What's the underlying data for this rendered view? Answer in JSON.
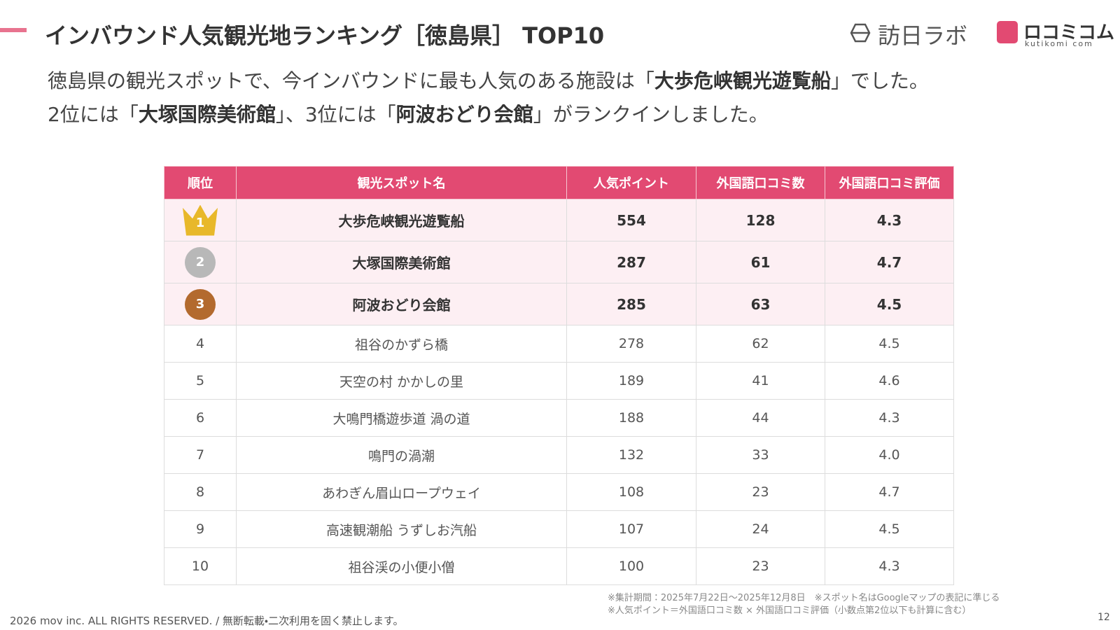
{
  "header": {
    "title": "インバウンド人気観光地ランキング［徳島県］ TOP10",
    "logo_1": "訪日ラボ",
    "logo_2": "ロコミコム",
    "logo_2_sub": "kutikomi com"
  },
  "intro": {
    "lines": [
      [
        {
          "text": "徳島県の観光スポットで、今インバウンドに最も人気のある施設は「",
          "bold": false
        },
        {
          "text": "大歩危峡観光遊覧船",
          "bold": true
        },
        {
          "text": "」でした。",
          "bold": false
        }
      ],
      [
        {
          "text": "2位には「",
          "bold": false
        },
        {
          "text": "大塚国際美術館",
          "bold": true
        },
        {
          "text": "」、3位には「",
          "bold": false
        },
        {
          "text": "阿波おどり会館",
          "bold": true
        },
        {
          "text": "」がランクインしました。",
          "bold": false
        }
      ]
    ]
  },
  "table": {
    "columns": [
      "順位",
      "観光スポット名",
      "人気ポイント",
      "外国語口コミ数",
      "外国語口コミ評価"
    ],
    "rows": [
      [
        "1",
        "大歩危峡観光遊覧船",
        "554",
        "128",
        "4.3"
      ],
      [
        "2",
        "大塚国際美術館",
        "287",
        "61",
        "4.7"
      ],
      [
        "3",
        "阿波おどり会館",
        "285",
        "63",
        "4.5"
      ],
      [
        "4",
        "祖谷のかずら橋",
        "278",
        "62",
        "4.5"
      ],
      [
        "5",
        "天空の村 かかしの里",
        "189",
        "41",
        "4.6"
      ],
      [
        "6",
        "大鳴門橋遊歩道 渦の道",
        "188",
        "44",
        "4.3"
      ],
      [
        "7",
        "鳴門の渦潮",
        "132",
        "33",
        "4.0"
      ],
      [
        "8",
        "あわぎん眉山ロープウェイ",
        "108",
        "23",
        "4.7"
      ],
      [
        "9",
        "高速観潮船 うずしお汽船",
        "107",
        "24",
        "4.5"
      ],
      [
        "10",
        "祖谷渓の小便小僧",
        "100",
        "23",
        "4.3"
      ]
    ]
  },
  "footer": {
    "notes": [
      "※集計期間：2025年7月22日〜2025年12月8日　※スポット名はGoogleマップの表記に準じる",
      "※人気ポイント＝外国語口コミ数 × 外国語口コミ評価（小数点第2位以下も計算に含む）"
    ],
    "copyright": "2026 mov inc. ALL RIGHTS RESERVED. / 無断転載・二次利用を固く禁止します。",
    "page": "12"
  }
}
